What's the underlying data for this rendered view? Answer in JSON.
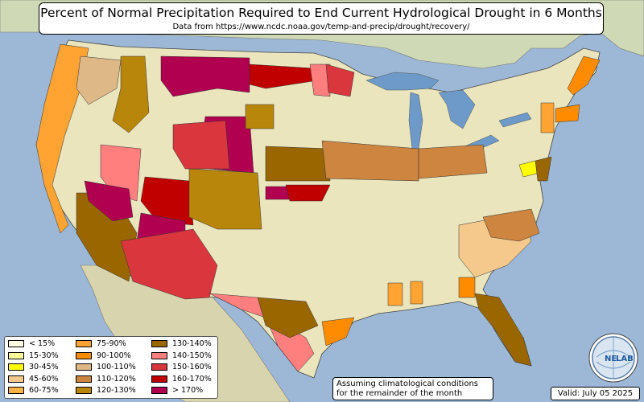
{
  "header": {
    "title": "Percent of Normal Precipitation Required to End Current Hydrological Drought in 6 Months",
    "subtitle": "Data from https://www.ncdc.noaa.gov/temp-and-precip/drought/recovery/"
  },
  "legend": {
    "items": [
      {
        "label": "< 15%",
        "color": "#ffffe5"
      },
      {
        "label": "15-30%",
        "color": "#ffff99"
      },
      {
        "label": "30-45%",
        "color": "#ffff00"
      },
      {
        "label": "45-60%",
        "color": "#f5c98c"
      },
      {
        "label": "60-75%",
        "color": "#ffb347"
      },
      {
        "label": "75-90%",
        "color": "#ffa333"
      },
      {
        "label": "90-100%",
        "color": "#ff8c00"
      },
      {
        "label": "100-110%",
        "color": "#deb887"
      },
      {
        "label": "110-120%",
        "color": "#cd853f"
      },
      {
        "label": "120-130%",
        "color": "#b8860b"
      },
      {
        "label": "130-140%",
        "color": "#996600"
      },
      {
        "label": "140-150%",
        "color": "#ff7f7f"
      },
      {
        "label": "150-160%",
        "color": "#d9363e"
      },
      {
        "label": "160-170%",
        "color": "#c00000"
      },
      {
        "label": "> 170%",
        "color": "#b0004f"
      }
    ]
  },
  "note": {
    "line1": "Assuming climatological conditions",
    "line2": "for the remainder of the month"
  },
  "valid": "Valid: July 05 2025",
  "logo": {
    "text_left": "NE",
    "text_right": "LAB"
  },
  "colors": {
    "ocean": "#9db8d6",
    "land": "#eae5bd",
    "lakes": "#6d9ac8"
  }
}
